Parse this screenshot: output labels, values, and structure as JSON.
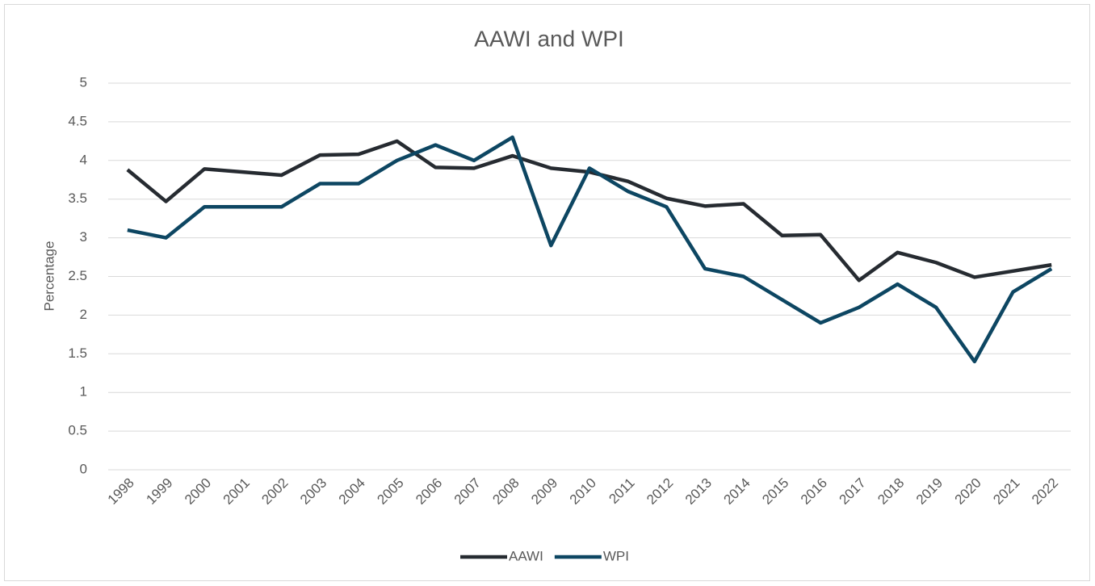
{
  "chart_data": {
    "type": "line",
    "title": "AAWI and WPI",
    "y_label": "Percentage",
    "categories": [
      "1998",
      "1999",
      "2000",
      "2001",
      "2002",
      "2003",
      "2004",
      "2005",
      "2006",
      "2007",
      "2008",
      "2009",
      "2010",
      "2011",
      "2012",
      "2013",
      "2014",
      "2015",
      "2016",
      "2017",
      "2018",
      "2019",
      "2020",
      "2021",
      "2022"
    ],
    "series": [
      {
        "name": "AAWI",
        "color": "#262b31",
        "values": [
          3.88,
          3.47,
          3.89,
          3.85,
          3.81,
          4.07,
          4.08,
          4.25,
          3.91,
          3.9,
          4.06,
          3.9,
          3.85,
          3.73,
          3.51,
          3.41,
          3.44,
          3.03,
          3.04,
          2.45,
          2.81,
          2.68,
          2.49,
          2.57,
          2.65
        ]
      },
      {
        "name": "WPI",
        "color": "#0d4662",
        "values": [
          3.1,
          3.0,
          3.4,
          3.4,
          3.4,
          3.7,
          3.7,
          4.0,
          4.2,
          4.0,
          4.3,
          2.9,
          3.9,
          3.6,
          3.4,
          2.6,
          2.5,
          2.2,
          1.9,
          2.1,
          2.4,
          2.1,
          1.4,
          2.3,
          2.6
        ]
      }
    ],
    "ylim": [
      0,
      5
    ],
    "yticks": [
      0,
      0.5,
      1,
      1.5,
      2,
      2.5,
      3,
      3.5,
      4,
      4.5,
      5
    ],
    "grid": true,
    "legend": "bottom"
  }
}
